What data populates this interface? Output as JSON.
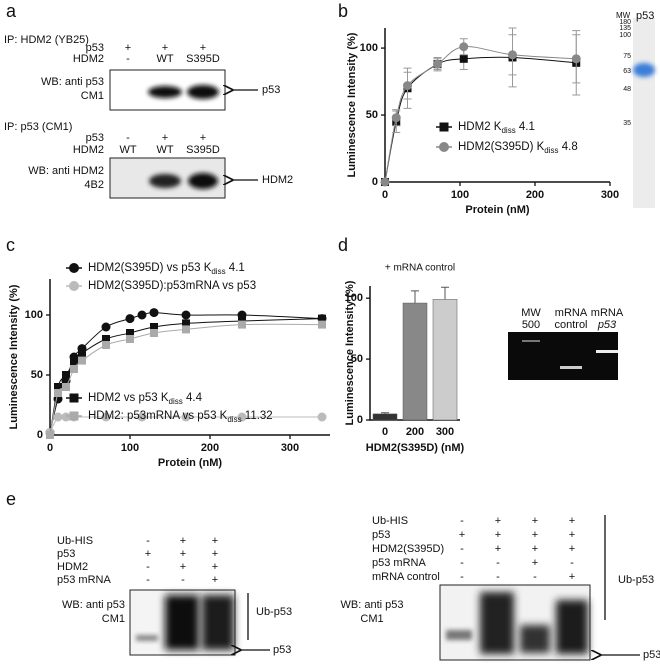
{
  "panel_labels": [
    "a",
    "b",
    "c",
    "d",
    "e"
  ],
  "panel_a": {
    "blots": [
      {
        "ip": "IP: HDM2 (YB25)",
        "rows": [
          {
            "label": "p53",
            "marks": [
              "+",
              "+",
              "+"
            ]
          },
          {
            "label": "HDM2",
            "marks": [
              "-",
              "WT",
              "S395D"
            ]
          }
        ],
        "wb": [
          "WB: anti p53",
          "CM1"
        ],
        "band_label": "p53"
      },
      {
        "ip": "IP: p53 (CM1)",
        "rows": [
          {
            "label": "p53",
            "marks": [
              "-",
              "+",
              "+"
            ]
          },
          {
            "label": "HDM2",
            "marks": [
              "WT",
              "WT",
              "S395D"
            ]
          }
        ],
        "wb": [
          "WB: anti HDM2",
          "4B2"
        ],
        "band_label": "HDM2"
      }
    ]
  },
  "chart_data": [
    {
      "type": "scatter",
      "x_label": "Protein (nM)",
      "y_label": "Luminescence Intensity (%)",
      "kd_symbol": "K",
      "kd_subscript": "diss",
      "xlim": [
        0,
        300
      ],
      "xticks": [
        0,
        100,
        200,
        300
      ],
      "ylim": [
        0,
        115
      ],
      "yticks": [
        0,
        50,
        100
      ],
      "series": [
        {
          "name": "HDM2",
          "color": "#111111",
          "marker": "square",
          "kd": 4.1,
          "x": [
            0,
            15,
            30,
            70,
            105,
            170,
            255
          ],
          "values": [
            0,
            45,
            70,
            88,
            92,
            93,
            89
          ],
          "errors": [
            0,
            8,
            15,
            5,
            8,
            22,
            24
          ]
        },
        {
          "name": "HDM2(S395D)",
          "color": "#888888",
          "marker": "circle",
          "kd": 4.8,
          "x": [
            0,
            15,
            30,
            70,
            105,
            170,
            255
          ],
          "values": [
            0,
            48,
            72,
            88,
            101,
            95,
            92
          ],
          "errors": [
            0,
            6,
            10,
            4,
            6,
            15,
            18
          ]
        }
      ]
    },
    {
      "type": "scatter",
      "x_label": "Protein (nM)",
      "y_label": "Luminescence Intensity (%)",
      "kd_symbol": "K",
      "kd_subscript": "diss",
      "xlim": [
        0,
        350
      ],
      "xticks": [
        0,
        100,
        200,
        300
      ],
      "ylim": [
        0,
        130
      ],
      "yticks": [
        0,
        50,
        100
      ],
      "series": [
        {
          "name": "HDM2(S395D) vs p53",
          "color": "#111111",
          "marker": "circle",
          "kd": 4.1,
          "x": [
            0,
            10,
            20,
            30,
            40,
            70,
            100,
            115,
            130,
            170,
            240,
            340
          ],
          "values": [
            2,
            30,
            45,
            65,
            72,
            90,
            97,
            100,
            102,
            100,
            100,
            97
          ]
        },
        {
          "name": "HDM2(S395D):p53mRNA vs p53",
          "color": "#bbbbbb",
          "marker": "circle",
          "x": [
            0,
            10,
            20,
            30,
            70,
            115,
            170,
            240,
            340
          ],
          "values": [
            2,
            15,
            15,
            15,
            15,
            15,
            15,
            15,
            15
          ]
        },
        {
          "name": "HDM2 vs p53",
          "color": "#111111",
          "marker": "square",
          "kd": 4.4,
          "x": [
            0,
            10,
            20,
            30,
            40,
            70,
            100,
            130,
            170,
            240,
            340
          ],
          "values": [
            0,
            40,
            50,
            60,
            68,
            80,
            85,
            90,
            93,
            95,
            97
          ]
        },
        {
          "name": "HDM2: p53mRNA vs p53",
          "color": "#aaaaaa",
          "marker": "square",
          "kd": 11.32,
          "x": [
            0,
            10,
            20,
            30,
            40,
            70,
            100,
            130,
            170,
            240,
            340
          ],
          "values": [
            0,
            35,
            40,
            55,
            62,
            75,
            80,
            85,
            88,
            92,
            92
          ]
        }
      ]
    },
    {
      "type": "bar",
      "annotation": "+ mRNA control",
      "x_label": "HDM2(S395D) (nM)",
      "y_label": "Luminescence Intensity (%)",
      "categories": [
        "0",
        "200",
        "300"
      ],
      "values": [
        5,
        96,
        99
      ],
      "errors": [
        1,
        10,
        10
      ],
      "colors": [
        "#333333",
        "#888888",
        "#cccccc"
      ],
      "ylim": [
        0,
        110
      ],
      "yticks": [
        0,
        50,
        100
      ]
    }
  ],
  "gel_b": {
    "header": [
      "MW",
      "p53"
    ],
    "markers": [
      180,
      135,
      100,
      75,
      63,
      48,
      35
    ]
  },
  "gel_d": {
    "lanes": [
      [
        "MW",
        "500"
      ],
      [
        "mRNA",
        "control"
      ],
      [
        "mRNA",
        "p53"
      ]
    ]
  },
  "panel_e": {
    "blots": [
      {
        "rows": [
          {
            "label": "Ub-HIS",
            "marks": [
              "-",
              "+",
              "+"
            ]
          },
          {
            "label": "p53",
            "marks": [
              "+",
              "+",
              "+"
            ]
          },
          {
            "label": "HDM2",
            "marks": [
              "-",
              "+",
              "+"
            ]
          },
          {
            "label": "p53 mRNA",
            "marks": [
              "-",
              "-",
              "+"
            ]
          }
        ],
        "wb": [
          "WB: anti p53",
          "CM1"
        ],
        "bands": [
          "Ub-p53",
          "p53"
        ]
      },
      {
        "rows": [
          {
            "label": "Ub-HIS",
            "marks": [
              "-",
              "+",
              "+",
              "+"
            ]
          },
          {
            "label": "p53",
            "marks": [
              "+",
              "+",
              "+",
              "+"
            ]
          },
          {
            "label": "HDM2(S395D)",
            "marks": [
              "-",
              "+",
              "+",
              "+"
            ]
          },
          {
            "label": "p53 mRNA",
            "marks": [
              "-",
              "-",
              "+",
              "-"
            ]
          },
          {
            "label": "mRNA control",
            "marks": [
              "-",
              "-",
              "-",
              "+"
            ]
          }
        ],
        "wb": [
          "WB: anti p53",
          "CM1"
        ],
        "bands": [
          "Ub-p53",
          "p53"
        ]
      }
    ]
  }
}
